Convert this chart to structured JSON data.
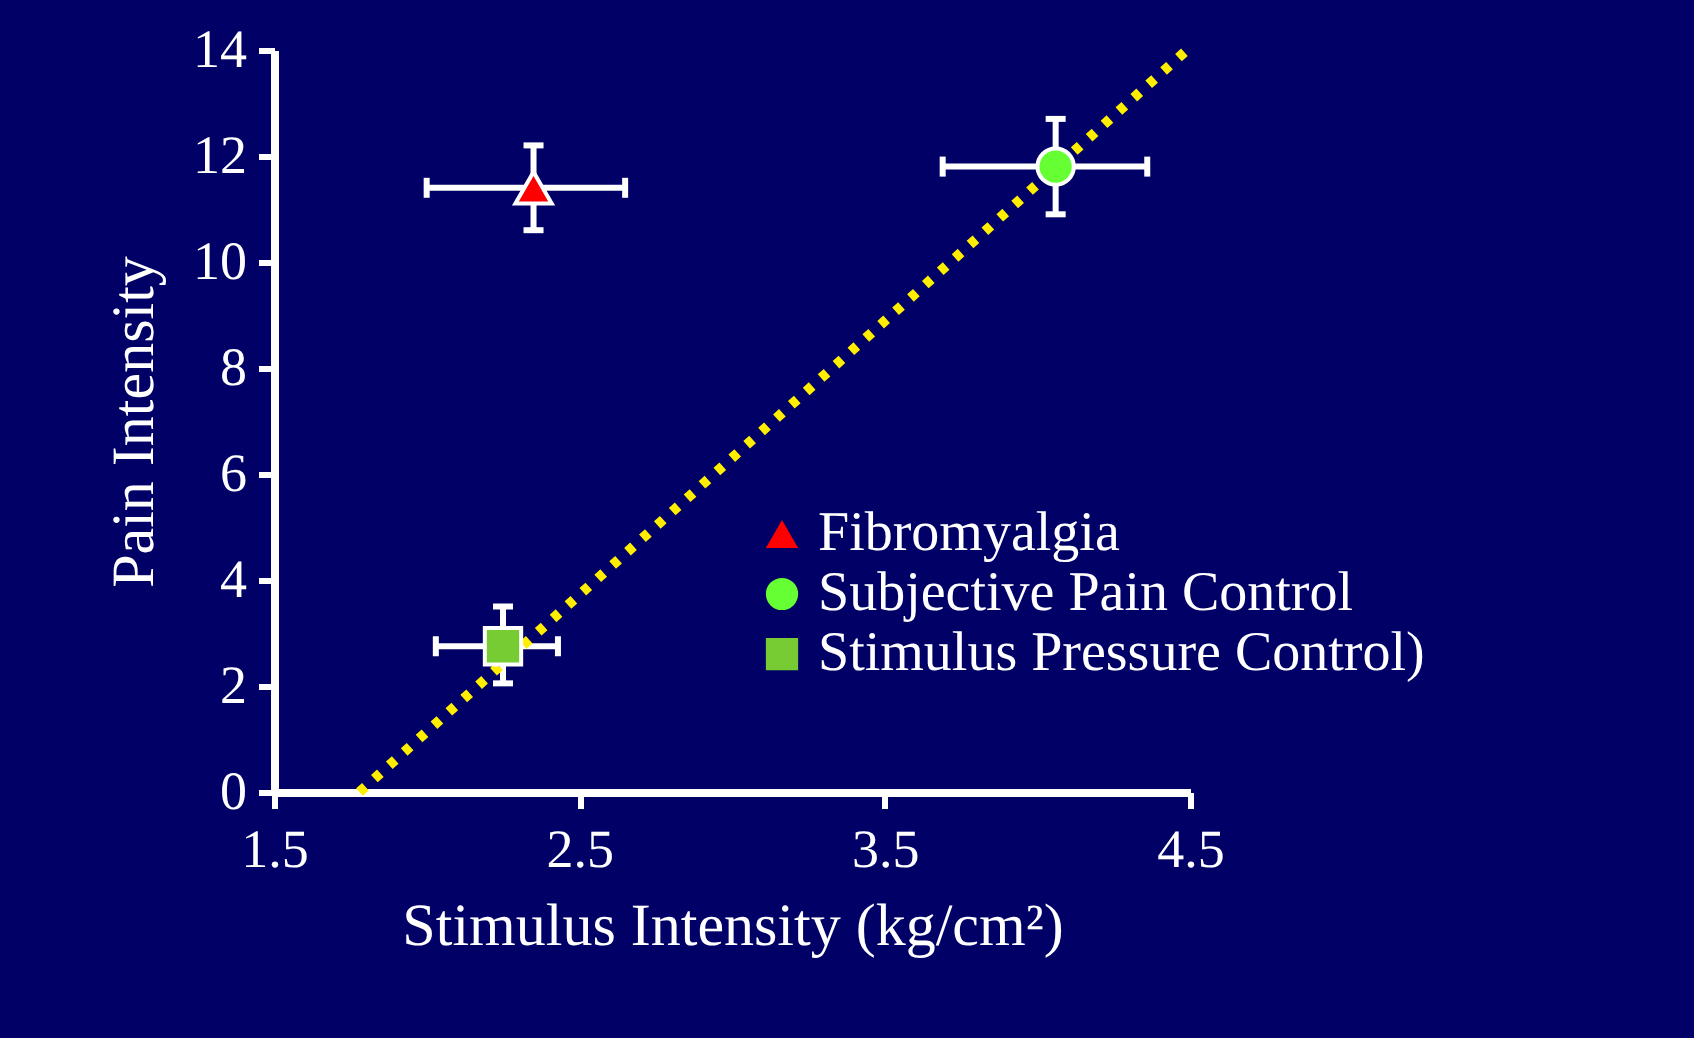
{
  "chart_data": {
    "type": "scatter",
    "xlabel": "Stimulus Intensity (kg/cm²)",
    "ylabel": "Pain Intensity",
    "xlim": [
      1.5,
      4.5
    ],
    "xticks": [
      1.5,
      2.5,
      3.5,
      4.5
    ],
    "ylim": [
      0,
      14
    ],
    "yticks": [
      0,
      2,
      4,
      6,
      8,
      10,
      12,
      14
    ],
    "grid": false,
    "legend": "bottom right",
    "series": [
      {
        "name": "Fibromyalgia",
        "marker": "triangle",
        "color": "#ff0000",
        "x": [
          2.35
        ],
        "values": [
          11.4
        ],
        "errors": [
          [
            10.6,
            12.2
          ]
        ],
        "xerrors": [
          [
            2.0,
            2.65
          ]
        ]
      },
      {
        "name": "Subjective Pain Control",
        "marker": "circle",
        "color": "#66ff33",
        "x": [
          4.06
        ],
        "values": [
          11.8
        ],
        "errors": [
          [
            10.9,
            12.7
          ]
        ],
        "xerrors": [
          [
            3.69,
            4.36
          ]
        ]
      },
      {
        "name": "Stimulus Pressure Control)",
        "marker": "square",
        "color": "#77cc33",
        "x": [
          2.25
        ],
        "values": [
          2.75
        ],
        "errors": [
          [
            2.05,
            3.5
          ]
        ],
        "xerrors": [
          [
            2.03,
            2.43
          ]
        ]
      },
      {
        "type": "line",
        "color": "#ffee00",
        "line_style": "dotted",
        "x": [
          1.78,
          4.49
        ],
        "values": [
          0,
          14
        ]
      }
    ]
  }
}
